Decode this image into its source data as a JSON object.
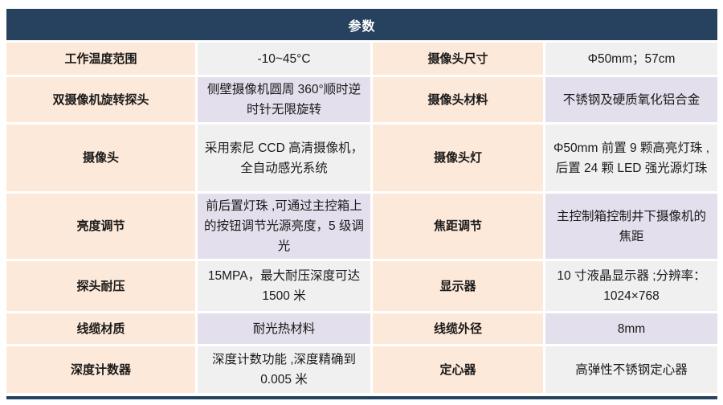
{
  "page": {
    "title": "参数"
  },
  "colors": {
    "header_bg": "#26425f",
    "label_bg": "#fde9d9",
    "value_gray_bg": "#f0f0f0",
    "value_lavender_bg": "#e3dfec",
    "header_text": "#ffffff",
    "body_text": "#1a1a1a"
  },
  "table": {
    "rows": [
      {
        "left": {
          "label": "工作温度范围",
          "value": "-10~45°C"
        },
        "right": {
          "label": "摄像头尺寸",
          "value": "Φ50mm；57cm"
        }
      },
      {
        "left": {
          "label": "双摄像机旋转探头",
          "value": "侧壁摄像机圆周 360°顺时逆时针无限旋转"
        },
        "right": {
          "label": "摄像头材料",
          "value": "不锈钢及硬质氧化铝合金"
        }
      },
      {
        "left": {
          "label": "摄像头",
          "value": "采用索尼 CCD 高清摄像机，全自动感光系统"
        },
        "right": {
          "label": "摄像头灯",
          "value": "Φ50mm 前置 9 颗高亮灯珠 ,后置 24 颗 LED 强光源灯珠"
        }
      },
      {
        "left": {
          "label": "亮度调节",
          "value": "前后置灯珠 ,可通过主控箱上的按钮调节光源亮度，5 级调光"
        },
        "right": {
          "label": "焦距调节",
          "value": "主控制箱控制井下摄像机的焦距"
        }
      },
      {
        "left": {
          "label": "探头耐压",
          "value": "15MPA，最大耐压深度可达 1500 米"
        },
        "right": {
          "label": "显示器",
          "value": "10 寸液晶显示器 ;分辨率：1024×768"
        }
      },
      {
        "left": {
          "label": "线缆材质",
          "value": "耐光热材料"
        },
        "right": {
          "label": "线缆外径",
          "value": "8mm"
        }
      },
      {
        "left": {
          "label": "深度计数器",
          "value": "深度计数功能 ,深度精确到 0.005 米"
        },
        "right": {
          "label": "定心器",
          "value": "高弹性不锈钢定心器"
        }
      }
    ]
  }
}
